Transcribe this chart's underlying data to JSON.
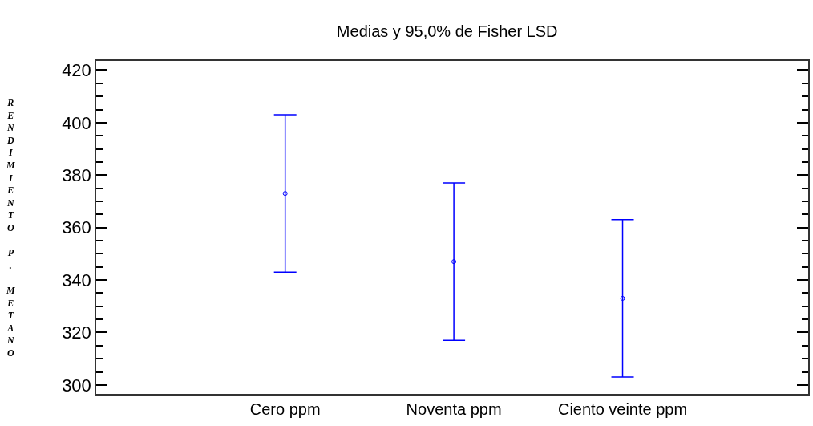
{
  "chart_data": {
    "type": "scatter",
    "title": "Medias y 95,0% de Fisher LSD",
    "ylabel": "RENDIMIENTO P. METANO",
    "categories": [
      "Cero ppm",
      "Noventa ppm",
      "Ciento veinte ppm"
    ],
    "color": "#0000ff",
    "values": [
      373,
      347,
      333
    ],
    "errors": [
      30,
      30,
      30
    ],
    "marker": "circle",
    "ylim": [
      296.6,
      423.5
    ],
    "yticks": [
      300,
      {
        "value": 305,
        "label": null
      },
      {
        "value": 310,
        "label": null
      },
      {
        "value": 315,
        "label": null
      },
      320,
      {
        "value": 325,
        "label": null
      },
      {
        "value": 330,
        "label": null
      },
      {
        "value": 335,
        "label": null
      },
      340,
      {
        "value": 345,
        "label": null
      },
      {
        "value": 350,
        "label": null
      },
      {
        "value": 355,
        "label": null
      },
      360,
      {
        "value": 365,
        "label": null
      },
      {
        "value": 370,
        "label": null
      },
      {
        "value": 375,
        "label": null
      },
      380,
      {
        "value": 385,
        "label": null
      },
      {
        "value": 390,
        "label": null
      },
      {
        "value": 395,
        "label": null
      },
      400,
      {
        "value": 405,
        "label": null
      },
      {
        "value": 410,
        "label": null
      },
      {
        "value": 415,
        "label": null
      },
      420
    ]
  }
}
